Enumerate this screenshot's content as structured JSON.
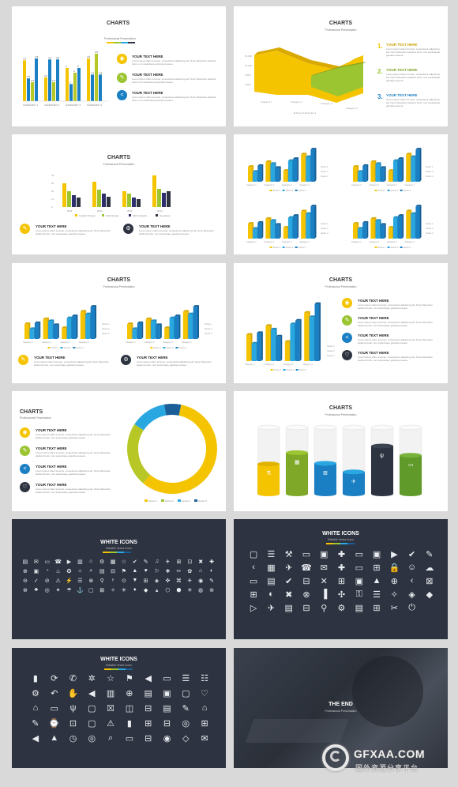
{
  "colors": {
    "yellow": "#f5c400",
    "green": "#9bc531",
    "blue": "#1b7fc4",
    "lightblue": "#29a7e1",
    "navy": "#2d3340",
    "olive": "#b7c726"
  },
  "common": {
    "charts_title": "CHARTS",
    "charts_subtitle": "Professional Presentation",
    "item_heading": "YOUR TEXT HERE",
    "item_body": "Lorem ipsum dolor sit amet, consectetur adipiscing elit. Nunc bibendum eleifend tortor, non scelerisque gravida posuere.",
    "white_icons_title": "WHITE ICONS",
    "white_icons_subtitle": "Editable Vector Icons"
  },
  "s1": {
    "categories": [
      "CATEGORY 1",
      "CATEGORY 2",
      "CATEGORY 3",
      "CATEGORY 4"
    ],
    "series": [
      {
        "name": "Series 1",
        "values": [
          4.3,
          2.5,
          3.5,
          4.5
        ]
      },
      {
        "name": "Series 2",
        "values": [
          2.4,
          4.4,
          1.8,
          2.8
        ]
      },
      {
        "name": "Series 3",
        "values": [
          2,
          2,
          3,
          5
        ]
      },
      {
        "name": "Series 4",
        "values": [
          4.5,
          4.4,
          3.5,
          2.8
        ]
      }
    ],
    "labels": [
      [
        "4.3",
        "2.4",
        "2",
        "4.5"
      ],
      [
        "2.5",
        "4.4",
        "2",
        "4.4"
      ],
      [
        "3.5",
        "1.8",
        "3",
        "3.5"
      ],
      [
        "4.5",
        "2.8",
        "5",
        "2.8"
      ]
    ]
  },
  "s2": {
    "x": [
      "Category 1",
      "Category 2",
      "Category 3",
      "Category 4"
    ],
    "legend": [
      "Series 1",
      "Series 2"
    ],
    "numbers": [
      "1.",
      "2.",
      "3."
    ],
    "yticks": [
      "15,000",
      "12,000",
      "9,000",
      "6,000",
      "3,000",
      "0"
    ]
  },
  "s3": {
    "categories": [
      "2011",
      "2012",
      "2013",
      "2014"
    ],
    "series": [
      {
        "name": "Graphic Design",
        "values": [
          30,
          32,
          20,
          40
        ]
      },
      {
        "name": "Web Design",
        "values": [
          20,
          22,
          17,
          23
        ]
      },
      {
        "name": "SEO Analysis",
        "values": [
          15,
          17,
          12,
          18
        ]
      },
      {
        "name": "Developer",
        "values": [
          12,
          13,
          10,
          20
        ]
      }
    ],
    "yticks": [
      "40",
      "30",
      "20",
      "10",
      "0"
    ]
  },
  "bar3d": {
    "categories": [
      "Category 1",
      "Category 2",
      "Category 3",
      "Category 4"
    ],
    "series": [
      "Series 1",
      "Series 2",
      "Series 3"
    ],
    "legend": [
      "Series 1",
      "Series 2",
      "Series 3"
    ]
  },
  "s7": {
    "legend": [
      "Series 1",
      "Series 2",
      "Series 3",
      "Series 4"
    ],
    "values": [
      58,
      23,
      13,
      6
    ]
  },
  "s8": {
    "levels": [
      0.45,
      0.62,
      0.46,
      0.33,
      0.72,
      0.58
    ]
  },
  "s9": {
    "icons": [
      "▤",
      "✉",
      "▭",
      "☎",
      "▶",
      "▥",
      "⌂",
      "⚙",
      "▦",
      "☆",
      "✔",
      "✎",
      "♫",
      "✈",
      "⊞",
      "⊡",
      "✖",
      "✚",
      "⊕",
      "▣",
      "◔",
      "♨",
      "✪",
      "☼",
      "⌕",
      "▤",
      "⊟",
      "⚑",
      "▲",
      "♥",
      "⚐",
      "❖",
      "✂",
      "✿",
      "⌂",
      "◐",
      "⊖",
      "✓",
      "⊘",
      "⚠",
      "⚡",
      "☰",
      "⊗",
      "⚲",
      "♀",
      "⊙",
      "▼",
      "⊞",
      "◈",
      "✜",
      "⌘",
      "✈",
      "◉",
      "✎",
      "⊛",
      "♣",
      "◎",
      "✦",
      "☂",
      "⚓",
      "▢",
      "⊠",
      "✧",
      "☀",
      "♦",
      "◆",
      "▴",
      "⬡",
      "⬢",
      "✳",
      "◍",
      "⊚"
    ]
  },
  "s10": {
    "icons": [
      "▢",
      "☰",
      "⚒",
      "▭",
      "▣",
      "✚",
      "▭",
      "▣",
      "▶",
      "✔",
      "✎",
      "‹",
      "▦",
      "✈",
      "☎",
      "✉",
      "✚",
      "▭",
      "⊞",
      "🔒",
      "☺",
      "☁",
      "▭",
      "▤",
      "✔",
      "⊟",
      "✕",
      "⊞",
      "▣",
      "▲",
      "⊕",
      "‹",
      "⊠",
      "⊞",
      "◐",
      "✖",
      "⊗",
      "▐",
      "✣",
      "⚿",
      "☰",
      "✧",
      "◈",
      "◆",
      "▷",
      "✈",
      "▤",
      "⊟",
      "⚲",
      "⚙",
      "▤",
      "⊞",
      "✂",
      "⏻"
    ]
  },
  "s11": {
    "icons": [
      "▮",
      "⟳",
      "✆",
      "✲",
      "☆",
      "⚑",
      "◀",
      "▭",
      "☰",
      "☷",
      "⚙",
      "↶",
      "✋",
      "◀",
      "▥",
      "⊕",
      "▤",
      "▣",
      "▢",
      "♡",
      "⌂",
      "▭",
      "ψ",
      "▢",
      "☒",
      "◫",
      "⊟",
      "▤",
      "✎",
      "⌂",
      "✎",
      "⌚",
      "⊡",
      "▢",
      "⚠",
      "▮",
      "⊞",
      "⊟",
      "◎",
      "⊞",
      "◀",
      "▲",
      "◷",
      "◎",
      "⌕",
      "▭",
      "⊟",
      "◉",
      "◇",
      "✉"
    ]
  },
  "s12": {
    "title": "THE END",
    "subtitle": "Professional Presentation"
  },
  "watermark": {
    "brand": "GFXAA.COM",
    "sub": "国外资源分享平台"
  }
}
